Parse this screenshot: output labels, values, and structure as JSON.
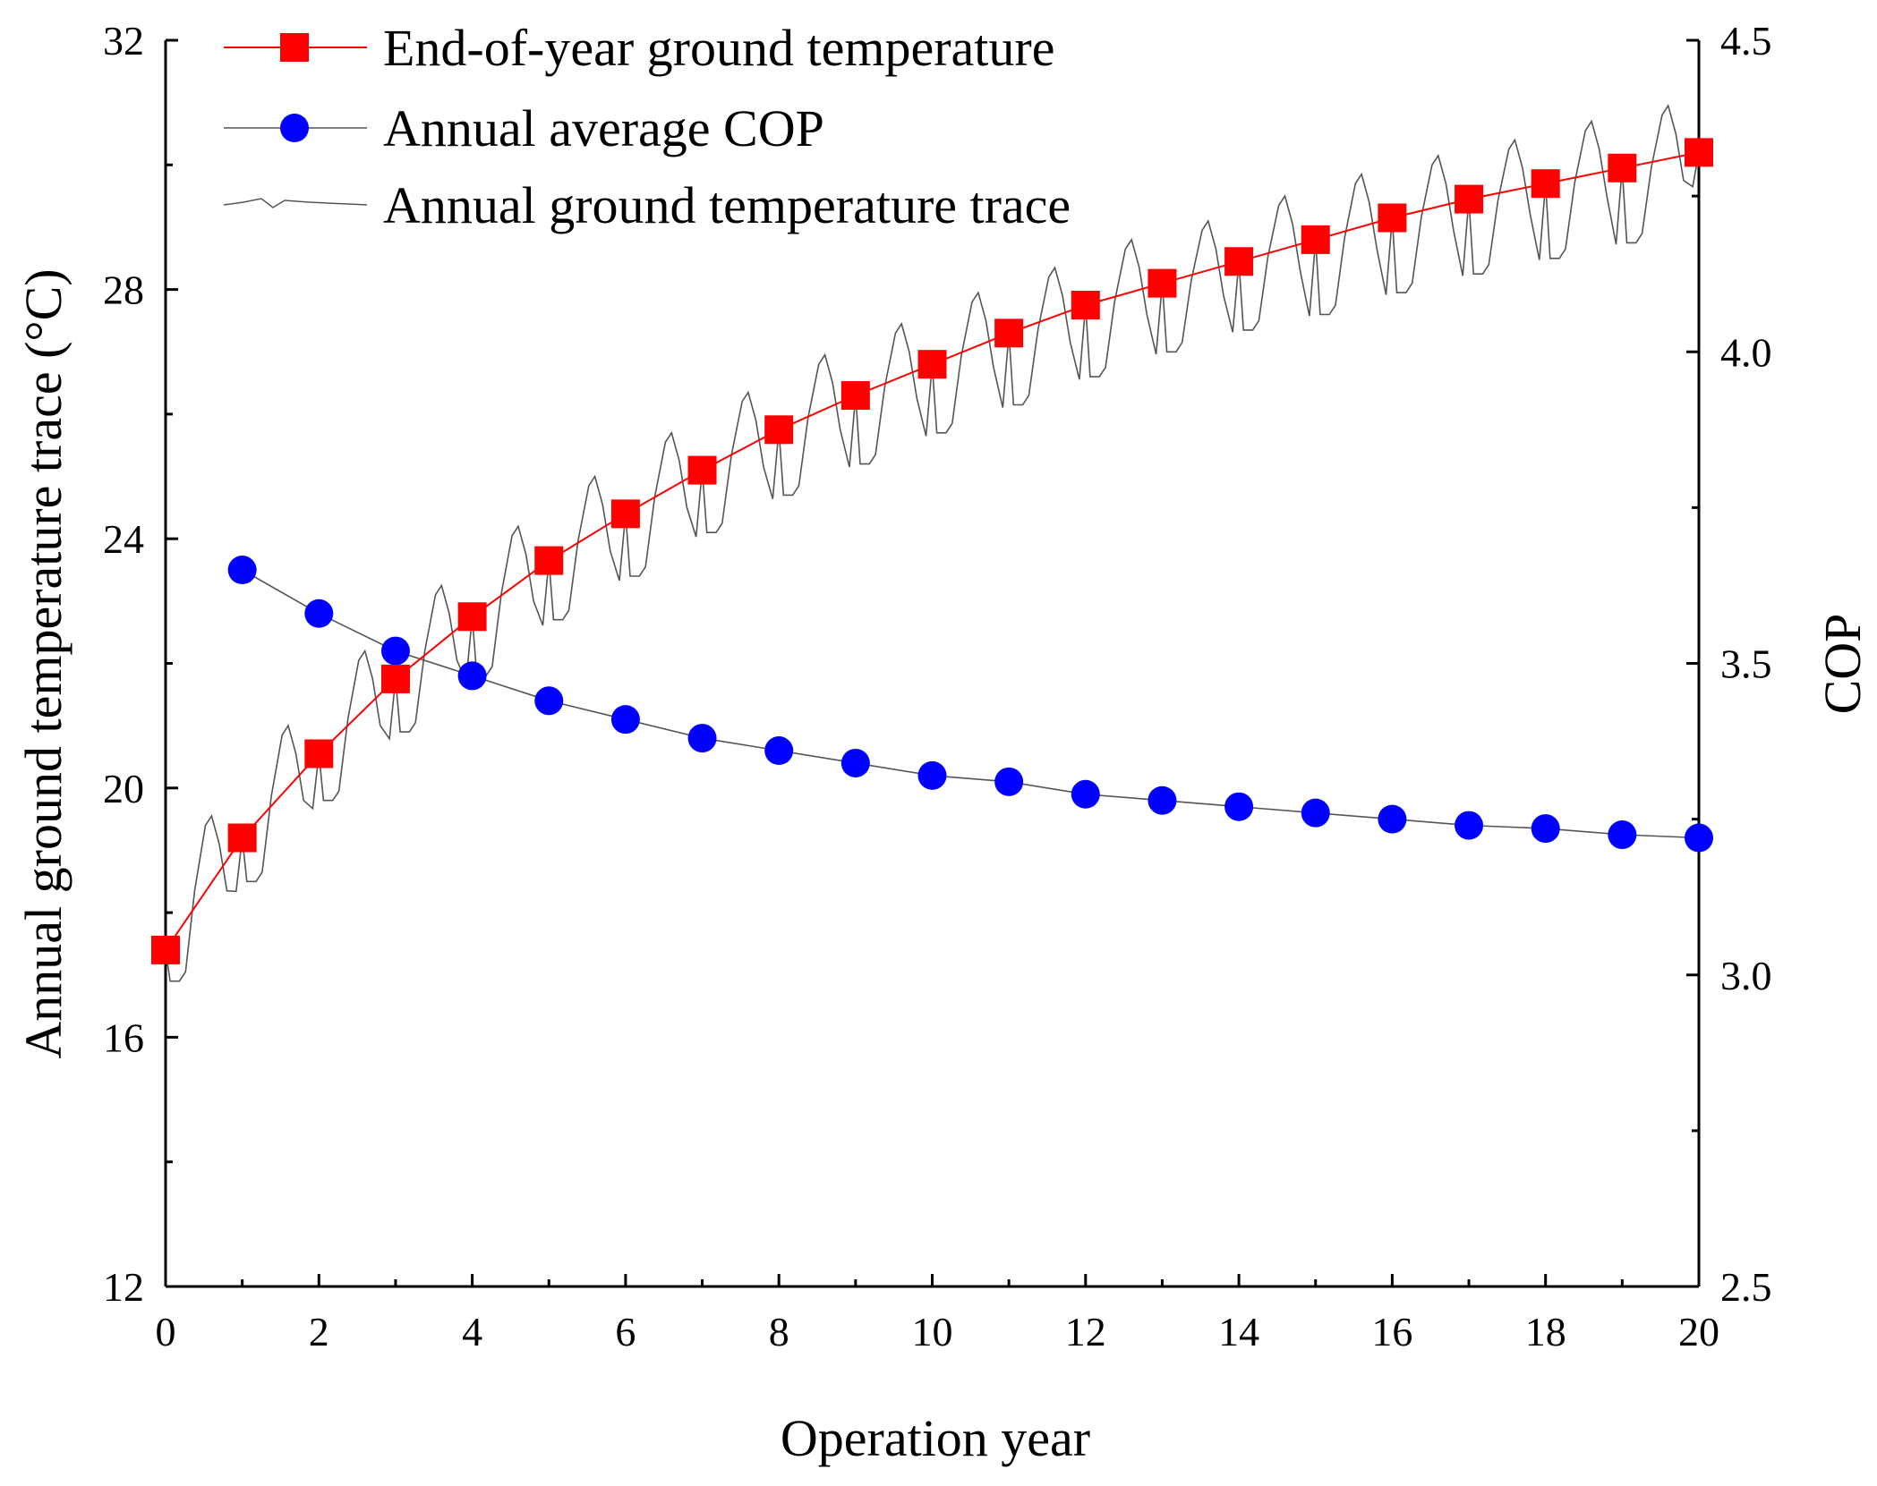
{
  "chart_data": {
    "type": "line",
    "xlabel": "Operation year",
    "ylabel_left": "Annual ground temperature trace (°C)",
    "ylabel_right": "COP",
    "xlim": [
      0,
      20
    ],
    "ylim_left": [
      12,
      32
    ],
    "ylim_right": [
      2.5,
      4.5
    ],
    "x_ticks": [
      0,
      2,
      4,
      6,
      8,
      10,
      12,
      14,
      16,
      18,
      20
    ],
    "y_left_ticks": [
      12,
      16,
      20,
      24,
      28,
      32
    ],
    "y_right_ticks": [
      "2.5",
      "3.0",
      "3.5",
      "4.0",
      "4.5"
    ],
    "grid": false,
    "legend_position": "top-left",
    "series": [
      {
        "name": "End-of-year ground temperature",
        "axis": "left",
        "color": "#ff0000",
        "marker": "square",
        "x": [
          0,
          1,
          2,
          3,
          4,
          5,
          6,
          7,
          8,
          9,
          10,
          11,
          12,
          13,
          14,
          15,
          16,
          17,
          18,
          19,
          20
        ],
        "values": [
          17.4,
          19.2,
          20.55,
          21.75,
          22.75,
          23.65,
          24.4,
          25.1,
          25.75,
          26.3,
          26.8,
          27.3,
          27.75,
          28.1,
          28.45,
          28.8,
          29.15,
          29.45,
          29.7,
          29.95,
          30.2
        ]
      },
      {
        "name": "Annual average COP",
        "axis": "right",
        "color": "#0000ff",
        "line_color": "#555555",
        "marker": "circle",
        "x": [
          1,
          2,
          3,
          4,
          5,
          6,
          7,
          8,
          9,
          10,
          11,
          12,
          13,
          14,
          15,
          16,
          17,
          18,
          19,
          20
        ],
        "values": [
          3.65,
          3.58,
          3.52,
          3.48,
          3.44,
          3.41,
          3.38,
          3.36,
          3.34,
          3.32,
          3.31,
          3.29,
          3.28,
          3.27,
          3.26,
          3.25,
          3.24,
          3.235,
          3.225,
          3.22
        ]
      },
      {
        "name": "Annual ground temperature trace",
        "axis": "left",
        "color": "#555555",
        "marker": "none",
        "description": "Seasonal oscillation riding on rising trend; per-year minimum and peak temperatures",
        "year_min": [
          16.9,
          18.5,
          19.8,
          20.9,
          21.8,
          22.7,
          23.4,
          24.1,
          24.7,
          25.2,
          25.7,
          26.15,
          26.6,
          27.0,
          27.35,
          27.6,
          27.95,
          28.25,
          28.5,
          28.75
        ],
        "year_peak": [
          19.55,
          21.0,
          22.2,
          23.25,
          24.2,
          25.0,
          25.7,
          26.35,
          26.95,
          27.45,
          27.95,
          28.35,
          28.8,
          29.1,
          29.5,
          29.85,
          30.15,
          30.4,
          30.7,
          30.95
        ]
      }
    ]
  }
}
